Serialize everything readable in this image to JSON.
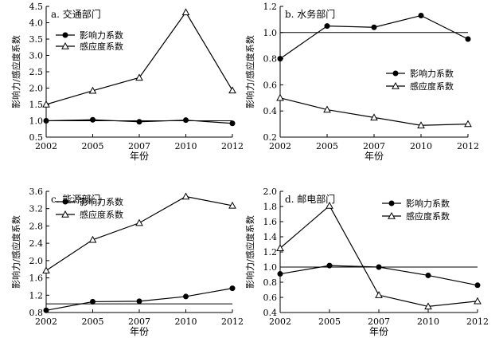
{
  "chart_data": [
    {
      "type": "line",
      "panel_label": "a. 交通部门",
      "x": [
        "2002",
        "2005",
        "2007",
        "2010",
        "2012"
      ],
      "xlabel": "年份",
      "ylabel": "影响力/感应度系数",
      "ylim": [
        0.5,
        4.5
      ],
      "yticks": [
        "0.5",
        "1.0",
        "1.5",
        "2.0",
        "2.5",
        "3.0",
        "3.5",
        "4.0",
        "4.5"
      ],
      "reference_line": 1.0,
      "legend_position": "top-left",
      "series": [
        {
          "name": "影响力系数",
          "marker": "filled-circle",
          "values": [
            1.0,
            1.03,
            0.97,
            1.02,
            0.92
          ]
        },
        {
          "name": "感应度系数",
          "marker": "open-triangle",
          "values": [
            1.5,
            1.92,
            2.32,
            4.32,
            1.93
          ]
        }
      ]
    },
    {
      "type": "line",
      "panel_label": "b. 水务部门",
      "x": [
        "2002",
        "2005",
        "2007",
        "2010",
        "2012"
      ],
      "xlabel": "年份",
      "ylabel": "影响力/感应度系数",
      "ylim": [
        0.2,
        1.2
      ],
      "yticks": [
        "0.2",
        "0.4",
        "0.6",
        "0.8",
        "1.0",
        "1.2"
      ],
      "reference_line": 1.0,
      "legend_position": "center-right",
      "series": [
        {
          "name": "影响力系数",
          "marker": "filled-circle",
          "values": [
            0.8,
            1.05,
            1.04,
            1.13,
            0.95
          ]
        },
        {
          "name": "感应度系数",
          "marker": "open-triangle",
          "values": [
            0.5,
            0.41,
            0.35,
            0.29,
            0.3
          ]
        }
      ]
    },
    {
      "type": "line",
      "panel_label": "c. 能源部门",
      "x": [
        "2002",
        "2005",
        "2007",
        "2010",
        "2012"
      ],
      "xlabel": "年份",
      "ylabel": "影响力/感应度系数",
      "ylim": [
        0.8,
        3.6
      ],
      "yticks": [
        "0.8",
        "1.2",
        "1.6",
        "2.0",
        "2.4",
        "2.8",
        "3.2",
        "3.6"
      ],
      "reference_line": 1.0,
      "legend_position": "top-left",
      "series": [
        {
          "name": "影响力系数",
          "marker": "filled-circle",
          "values": [
            0.85,
            1.05,
            1.06,
            1.17,
            1.36
          ]
        },
        {
          "name": "感应度系数",
          "marker": "open-triangle",
          "values": [
            1.77,
            2.48,
            2.87,
            3.48,
            3.27
          ]
        }
      ]
    },
    {
      "type": "line",
      "panel_label": "d. 邮电部门",
      "x": [
        "2002",
        "2005",
        "2007",
        "2010",
        "2012"
      ],
      "xlabel": "年份",
      "ylabel": "影响力/感应度系数",
      "ylim": [
        0.4,
        2.0
      ],
      "yticks": [
        "0.4",
        "0.6",
        "0.8",
        "1.0",
        "1.2",
        "1.4",
        "1.6",
        "1.8",
        "2.0"
      ],
      "reference_line": 1.0,
      "legend_position": "top-right",
      "series": [
        {
          "name": "影响力系数",
          "marker": "filled-circle",
          "values": [
            0.91,
            1.02,
            1.0,
            0.89,
            0.76
          ]
        },
        {
          "name": "感应度系数",
          "marker": "open-triangle",
          "values": [
            1.25,
            1.81,
            0.63,
            0.48,
            0.55
          ]
        }
      ]
    }
  ]
}
